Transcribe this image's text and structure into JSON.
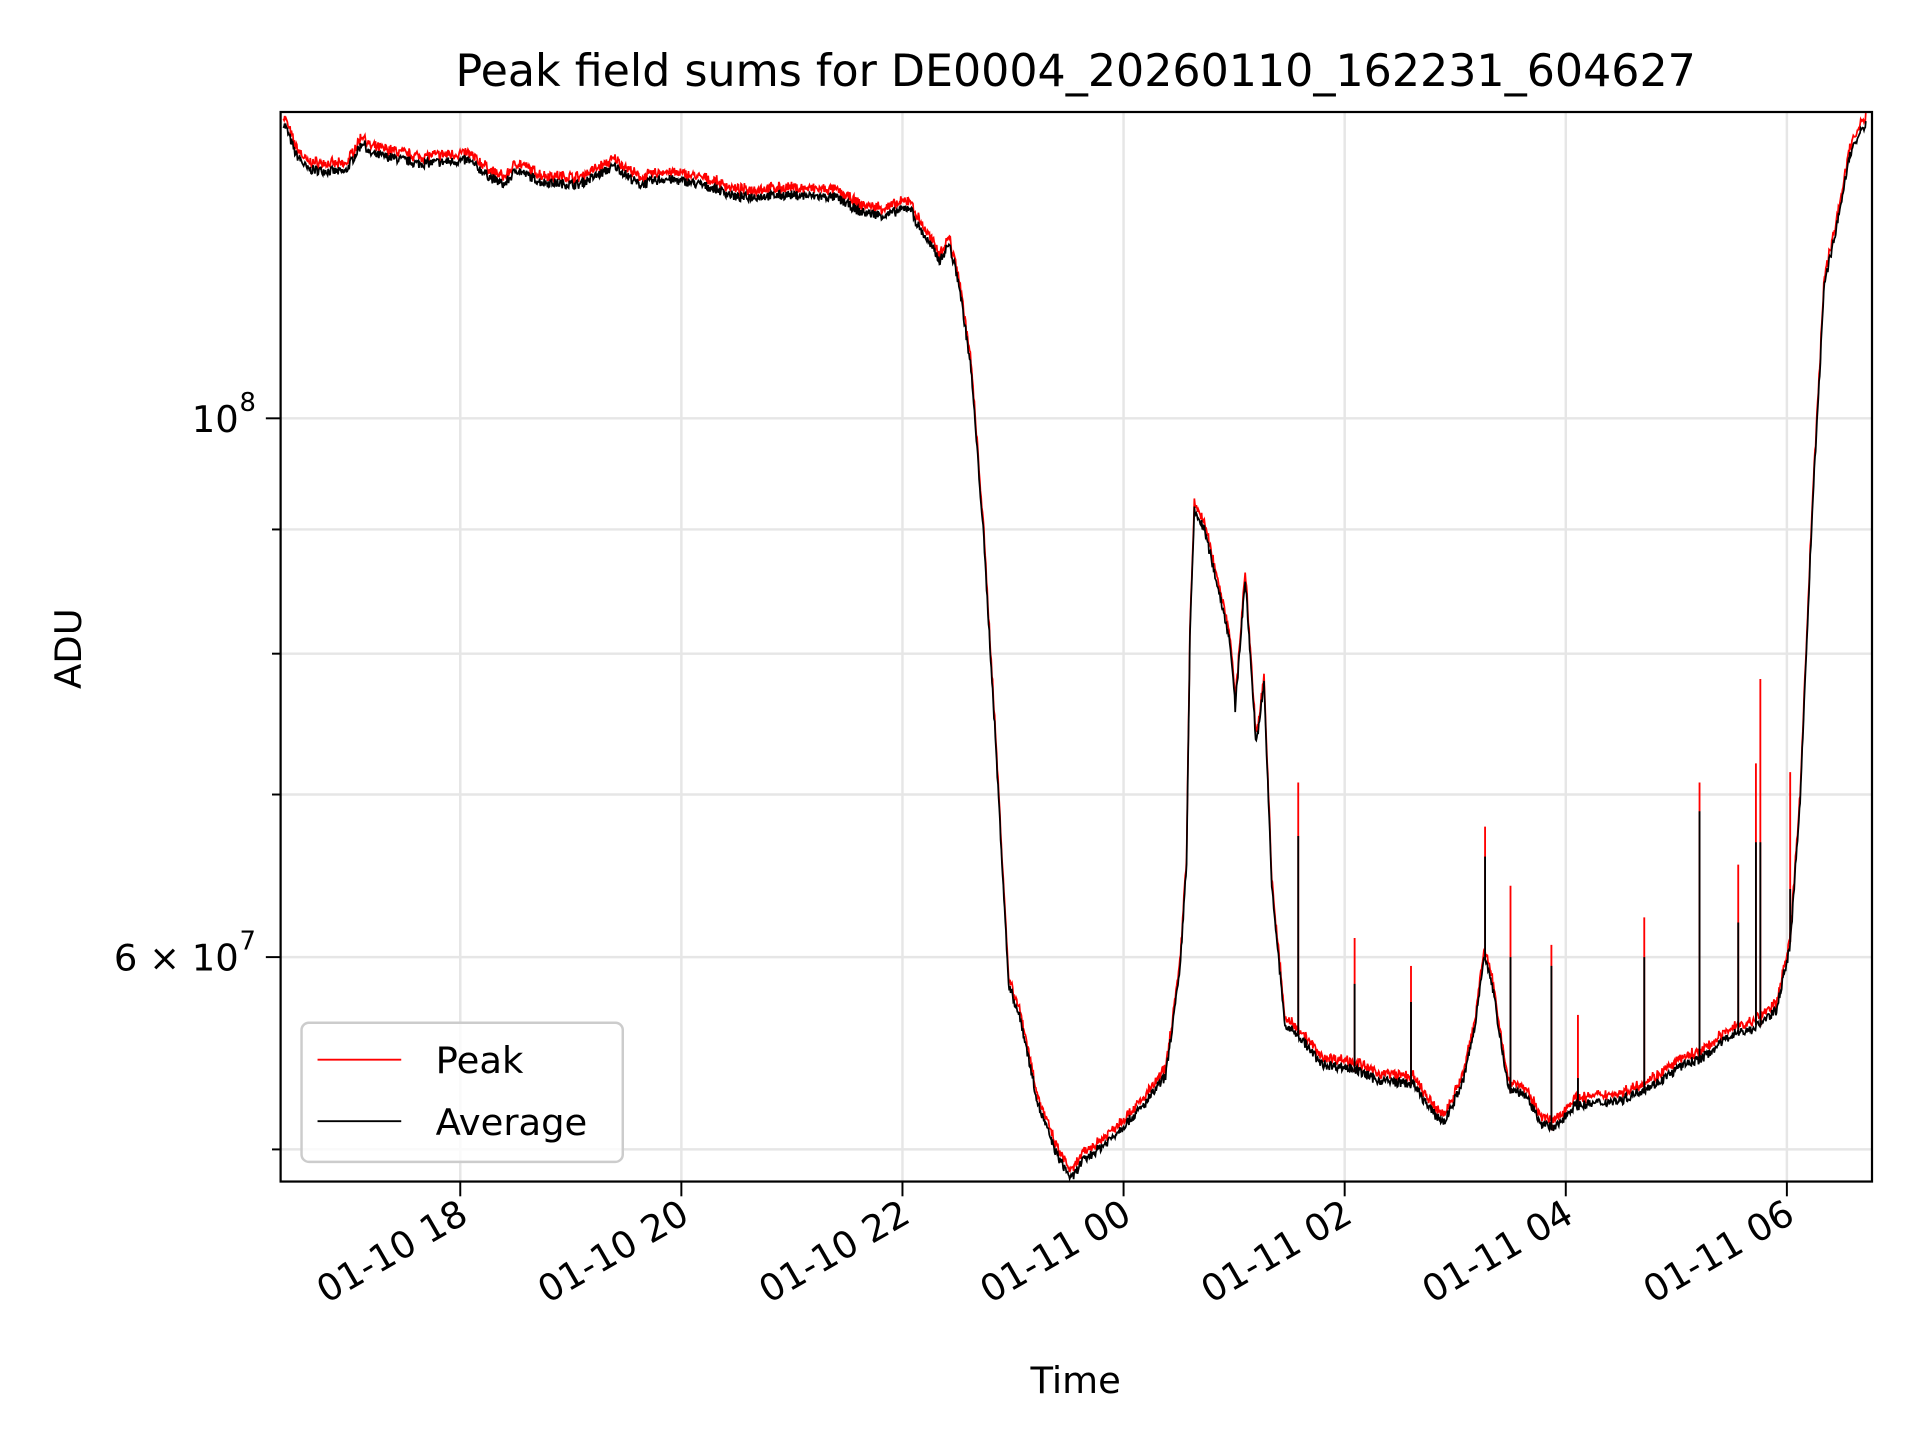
{
  "chart_data": {
    "type": "line",
    "title": "Peak field sums for DE0004_20260110_162231_604627",
    "xlabel": "Time",
    "ylabel": "ADU",
    "x_units": "hours since 2026-01-10 00:00",
    "xlim": [
      16.375,
      30.77
    ],
    "ylim": [
      48500000,
      133700000
    ],
    "yscale": "log",
    "grid": true,
    "legend_position": "lower-left",
    "x_ticks": [
      {
        "value": 18,
        "label": "01-10 18"
      },
      {
        "value": 20,
        "label": "01-10 20"
      },
      {
        "value": 22,
        "label": "01-10 22"
      },
      {
        "value": 24,
        "label": "01-11 00"
      },
      {
        "value": 26,
        "label": "01-11 02"
      },
      {
        "value": 28,
        "label": "01-11 04"
      },
      {
        "value": 30,
        "label": "01-11 06"
      }
    ],
    "y_major_ticks": [
      {
        "value": 100000000,
        "base": "10",
        "exp": "8",
        "label": "10^8"
      },
      {
        "value": 60000000,
        "base": "6 × 10",
        "exp": "7",
        "label": "6 × 10^7"
      }
    ],
    "y_minor_ticks": [
      50000000,
      70000000,
      80000000,
      90000000
    ],
    "series": [
      {
        "name": "Peak",
        "color": "#ff0000"
      },
      {
        "name": "Average",
        "color": "#000000"
      }
    ],
    "average": [
      [
        16.4,
        132.3
      ],
      [
        16.43,
        131.5
      ],
      [
        16.51,
        128.5
      ],
      [
        16.62,
        126.6
      ],
      [
        16.96,
        126.3
      ],
      [
        17.12,
        130.0
      ],
      [
        17.18,
        128.5
      ],
      [
        17.4,
        128.0
      ],
      [
        17.62,
        127.3
      ],
      [
        18.07,
        127.7
      ],
      [
        18.29,
        125.5
      ],
      [
        18.4,
        124.8
      ],
      [
        18.51,
        126.6
      ],
      [
        18.73,
        125.1
      ],
      [
        19.07,
        124.8
      ],
      [
        19.4,
        127.0
      ],
      [
        19.62,
        124.8
      ],
      [
        19.84,
        125.5
      ],
      [
        20.07,
        125.1
      ],
      [
        20.29,
        124.4
      ],
      [
        20.51,
        123.3
      ],
      [
        20.96,
        123.6
      ],
      [
        21.4,
        123.3
      ],
      [
        21.62,
        121.6
      ],
      [
        21.84,
        121.2
      ],
      [
        22.07,
        122.2
      ],
      [
        22.12,
        120.5
      ],
      [
        22.34,
        116.1
      ],
      [
        22.42,
        118.0
      ],
      [
        22.51,
        113.7
      ],
      [
        22.62,
        104.8
      ],
      [
        22.73,
        90.0
      ],
      [
        22.84,
        73.9
      ],
      [
        22.96,
        58.5
      ],
      [
        23.07,
        56.5
      ],
      [
        23.23,
        52.1
      ],
      [
        23.4,
        49.7
      ],
      [
        23.53,
        48.6
      ],
      [
        23.62,
        49.4
      ],
      [
        23.84,
        50.3
      ],
      [
        24.18,
        52.1
      ],
      [
        24.38,
        53.6
      ],
      [
        24.51,
        59.2
      ],
      [
        24.57,
        65.7
      ],
      [
        24.6,
        81.1
      ],
      [
        24.64,
        91.6
      ],
      [
        24.73,
        90.0
      ],
      [
        24.87,
        84.6
      ],
      [
        24.96,
        81.1
      ],
      [
        25.01,
        76.0
      ],
      [
        25.1,
        85.9
      ],
      [
        25.2,
        73.4
      ],
      [
        25.27,
        77.8
      ],
      [
        25.34,
        64.2
      ],
      [
        25.46,
        56.2
      ],
      [
        25.57,
        55.8
      ],
      [
        25.79,
        54.2
      ],
      [
        26.07,
        54.0
      ],
      [
        26.29,
        53.4
      ],
      [
        26.62,
        53.2
      ],
      [
        26.79,
        51.8
      ],
      [
        26.9,
        51.3
      ],
      [
        27.07,
        53.3
      ],
      [
        27.18,
        56.2
      ],
      [
        27.26,
        60.2
      ],
      [
        27.34,
        58.2
      ],
      [
        27.48,
        53.0
      ],
      [
        27.62,
        52.7
      ],
      [
        27.79,
        51.2
      ],
      [
        27.9,
        51.0
      ],
      [
        28.07,
        52.1
      ],
      [
        28.51,
        52.4
      ],
      [
        28.84,
        53.3
      ],
      [
        29.07,
        54.2
      ],
      [
        29.23,
        54.5
      ],
      [
        29.51,
        55.8
      ],
      [
        29.68,
        56.0
      ],
      [
        29.9,
        57.0
      ],
      [
        30.03,
        60.6
      ],
      [
        30.12,
        69.7
      ],
      [
        30.23,
        91.6
      ],
      [
        30.34,
        113.7
      ],
      [
        30.46,
        120.5
      ],
      [
        30.57,
        128.5
      ],
      [
        30.68,
        131.5
      ],
      [
        30.72,
        132.3
      ]
    ],
    "average_units": "millions of ADU",
    "peak_offset_fraction": 0.005,
    "spikes": [
      [
        25.58,
        70.8,
        67.3
      ],
      [
        26.09,
        61.1,
        58.5
      ],
      [
        26.6,
        59.5,
        57.5
      ],
      [
        27.27,
        67.9,
        66.0
      ],
      [
        27.5,
        64.2,
        60.0
      ],
      [
        27.87,
        60.7,
        59.5
      ],
      [
        28.11,
        56.8,
        53.5
      ],
      [
        28.71,
        62.3,
        60.0
      ],
      [
        29.21,
        70.8,
        68.9
      ],
      [
        29.56,
        65.5,
        62.0
      ],
      [
        29.72,
        72.1,
        66.9
      ],
      [
        29.76,
        78.1,
        66.9
      ],
      [
        30.03,
        71.5,
        64.0
      ]
    ],
    "spike_columns": [
      "hour",
      "peak_millions",
      "average_millions"
    ]
  }
}
